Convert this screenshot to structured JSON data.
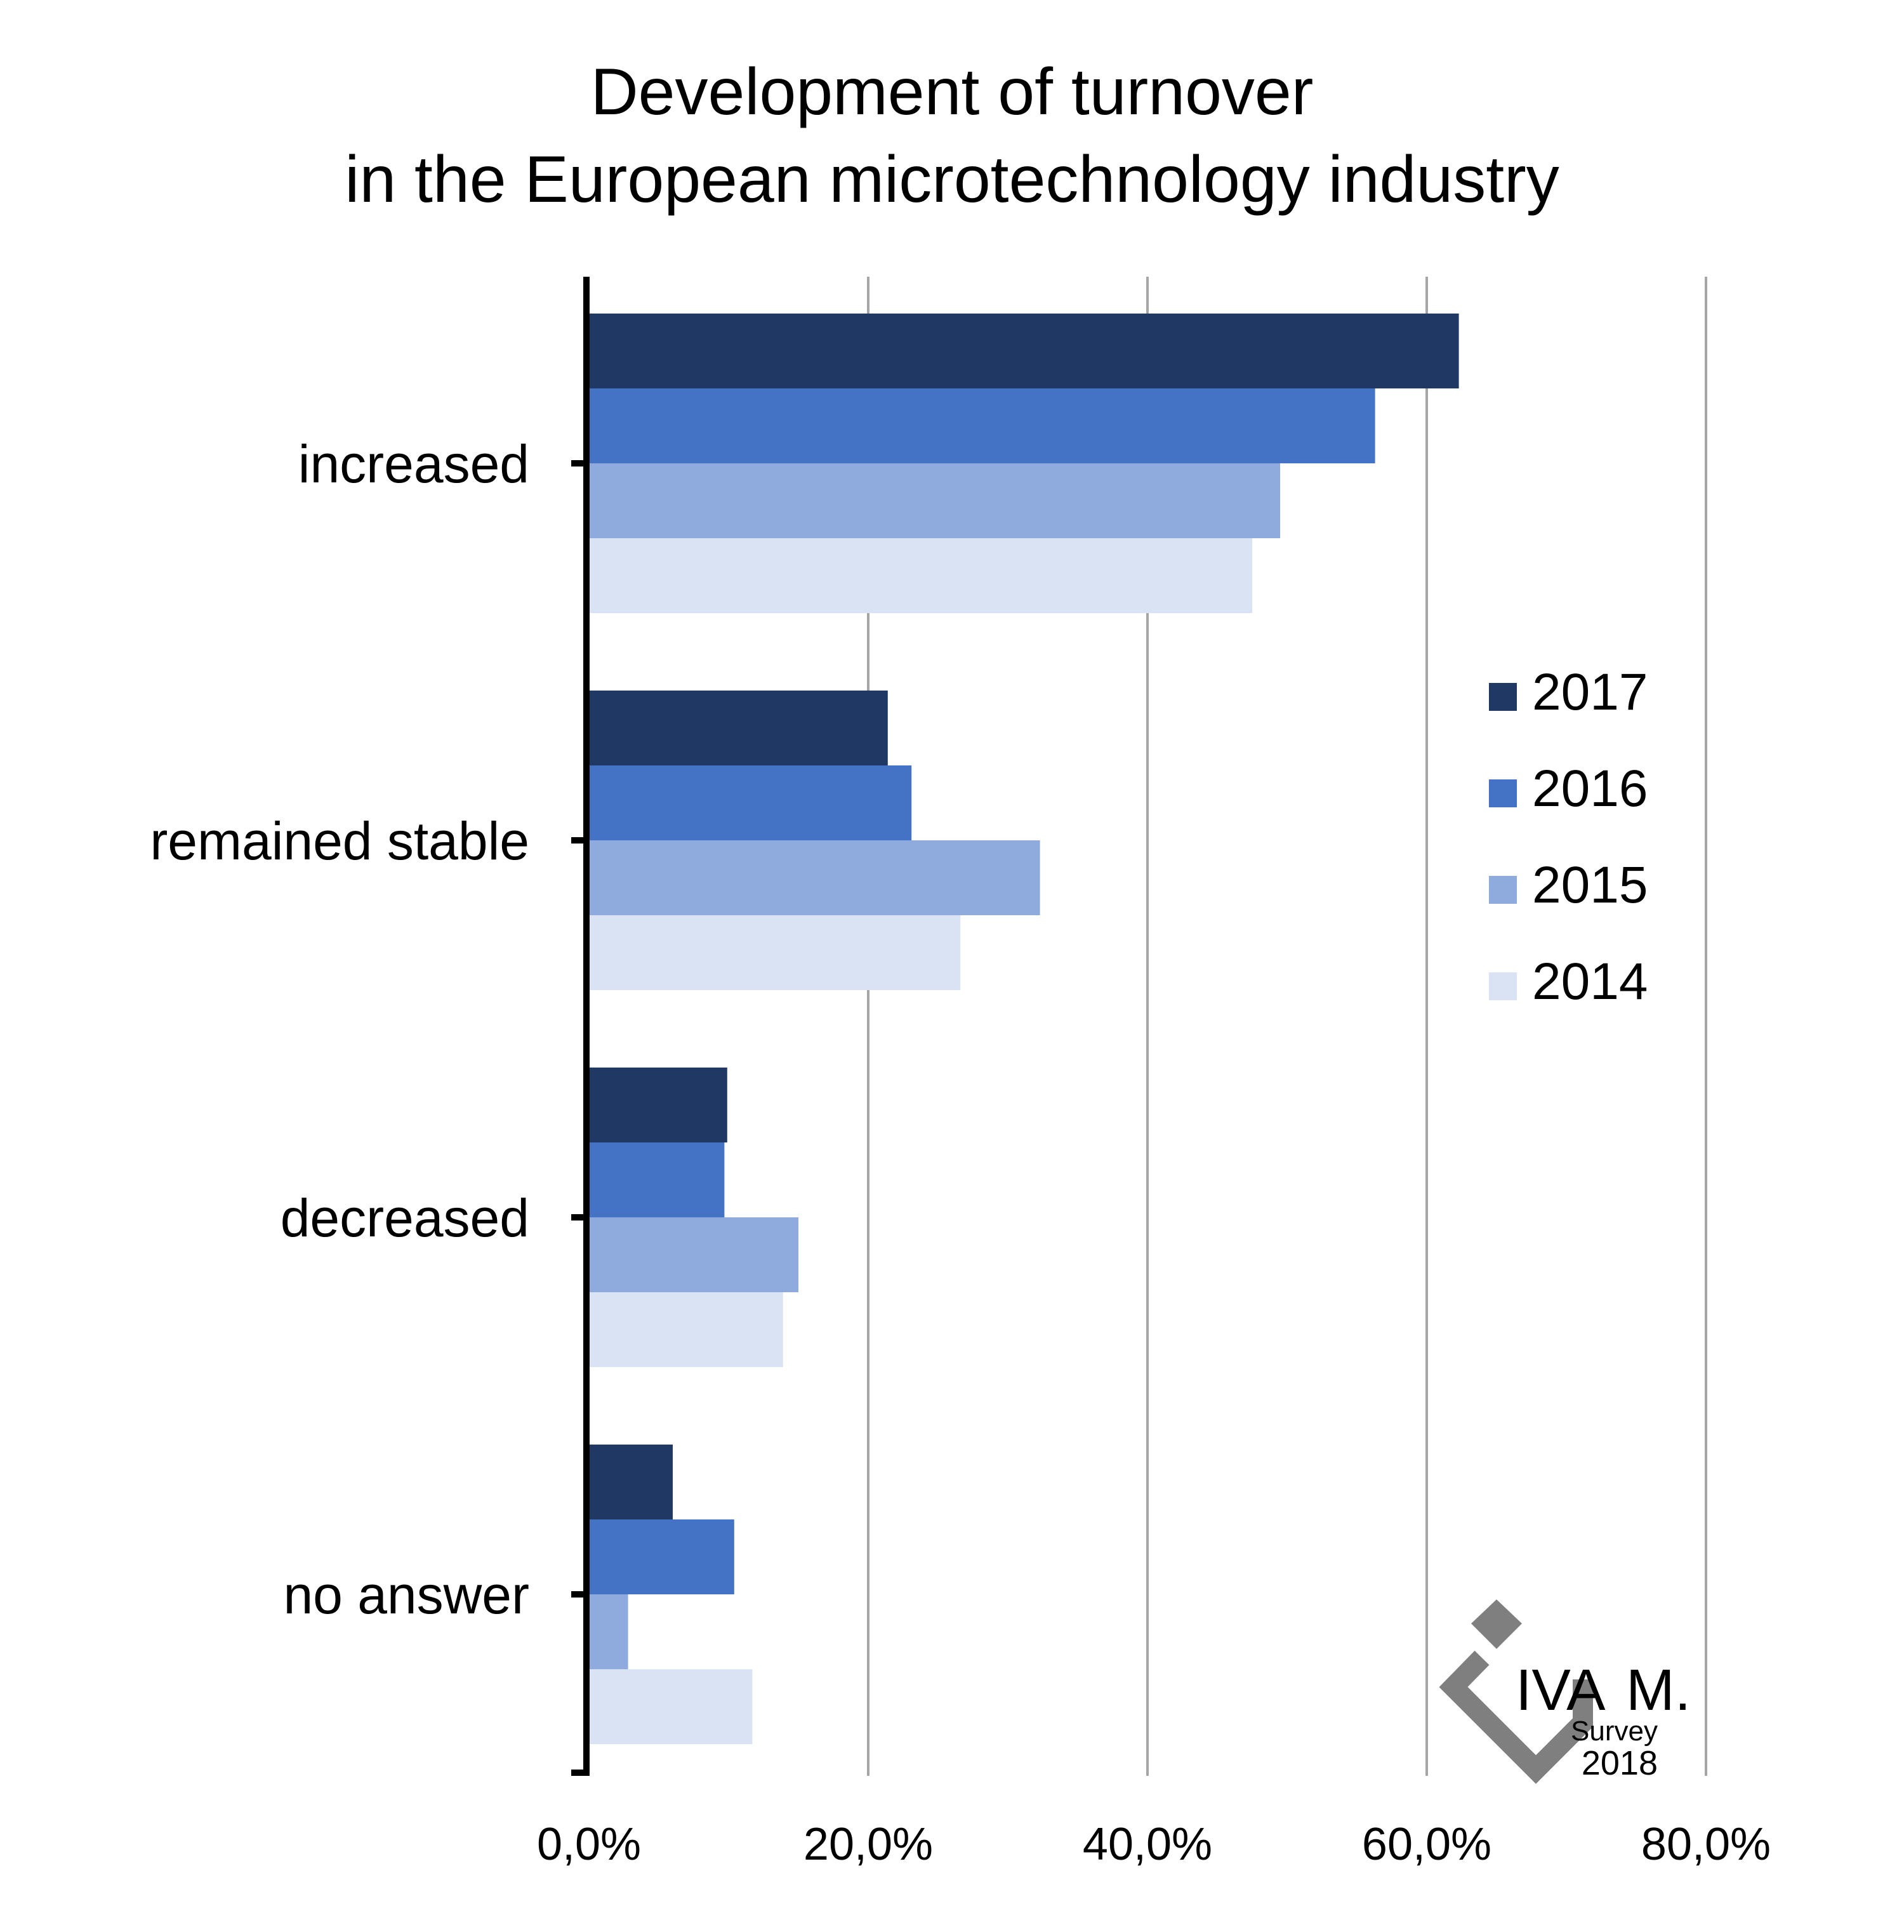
{
  "chart_data": {
    "type": "bar",
    "orientation": "horizontal",
    "title": [
      "Development of turnover",
      "in the European microtechnology industry"
    ],
    "categories": [
      "increased",
      "remained stable",
      "decreased",
      "no answer"
    ],
    "series": [
      {
        "name": "2017",
        "color": "#203864",
        "values": [
          62.3,
          21.4,
          9.9,
          6.0
        ]
      },
      {
        "name": "2016",
        "color": "#4472c4",
        "values": [
          56.3,
          23.1,
          9.7,
          10.4
        ]
      },
      {
        "name": "2015",
        "color": "#8faadc",
        "values": [
          49.5,
          32.3,
          15.0,
          2.8
        ]
      },
      {
        "name": "2014",
        "color": "#dae3f3",
        "values": [
          47.5,
          26.6,
          13.9,
          11.7
        ]
      }
    ],
    "xlim": [
      0,
      80
    ],
    "xticks": [
      0,
      20,
      40,
      60,
      80
    ],
    "xtick_labels": [
      "0,0%",
      "20,0%",
      "40,0%",
      "60,0%",
      "80,0%"
    ],
    "grid": "vertical",
    "legend_position": "right"
  },
  "logo": {
    "brand_main": "IVA",
    "brand_accent": "M.",
    "line1": "Survey",
    "line2": "2018"
  },
  "colors": {
    "gridline": "#a6a6a6",
    "axis": "#000000",
    "logo_gray": "#7f7f7f"
  }
}
